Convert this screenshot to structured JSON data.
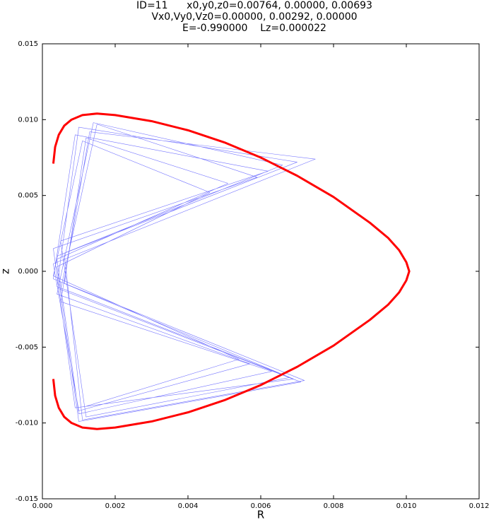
{
  "chart_data": {
    "type": "line",
    "title": [
      "ID=11      x0,y0,z0=0.00764, 0.00000, 0.00693",
      "Vx0,Vy0,Vz0=0.00000, 0.00292, 0.00000",
      "E=-0.990000    Lz=0.000022"
    ],
    "xlabel": "R",
    "ylabel": "z",
    "xlim": [
      0,
      0.012
    ],
    "ylim": [
      -0.015,
      0.015
    ],
    "xticks": [
      {
        "value": 0,
        "label": "0.000"
      },
      {
        "value": 0.002,
        "label": "0.002"
      },
      {
        "value": 0.004,
        "label": "0.004"
      },
      {
        "value": 0.006,
        "label": "0.006"
      },
      {
        "value": 0.008,
        "label": "0.008"
      },
      {
        "value": 0.01,
        "label": "0.010"
      },
      {
        "value": 0.012,
        "label": "0.012"
      }
    ],
    "yticks": [
      {
        "value": -0.015,
        "label": "-0.015"
      },
      {
        "value": -0.01,
        "label": "-0.010"
      },
      {
        "value": -0.005,
        "label": "-0.005"
      },
      {
        "value": 0,
        "label": "0.000"
      },
      {
        "value": 0.005,
        "label": "0.005"
      },
      {
        "value": 0.01,
        "label": "0.010"
      },
      {
        "value": 0.015,
        "label": "0.015"
      }
    ],
    "grid": false,
    "series": [
      {
        "color": "#0000ff",
        "width": 0.6,
        "opacity": 0.55,
        "x": [
          0.0004,
          0.007,
          0.001,
          0.0004,
          0.0068,
          0.0012,
          0.0005,
          0.0062,
          0.0009,
          0.0003,
          0.0072,
          0.0011,
          0.0006,
          0.0066,
          0.0014,
          0.0004,
          0.0057,
          0.001,
          0.0003,
          0.0075,
          0.0013,
          0.0005,
          0.0063,
          0.001,
          0.0004,
          0.0051,
          0.0012,
          0.0006,
          0.0069,
          0.0009,
          0.0003,
          0.0059,
          0.0015,
          0.0005,
          0.0071,
          0.001,
          0.0004,
          0.0046,
          0.0011,
          0.0003,
          0.0054,
          0.0012
        ],
        "y": [
          0.001,
          0.0072,
          0.0095,
          -0.001,
          -0.007,
          -0.0096,
          0.002,
          0.0066,
          0.009,
          -0.0005,
          -0.0072,
          -0.0098,
          0.0012,
          0.007,
          0.0098,
          -0.0015,
          -0.0061,
          -0.0092,
          0.0005,
          0.0074,
          0.0092,
          -0.002,
          -0.0066,
          -0.0094,
          0.0008,
          0.0058,
          0.0088,
          -0.0008,
          -0.0071,
          -0.009,
          0.0015,
          0.0062,
          0.0097,
          -0.0012,
          -0.0073,
          -0.0099,
          0.0003,
          0.0052,
          0.0086,
          -0.0003,
          -0.0058,
          -0.0089
        ]
      },
      {
        "color": "#ff0000",
        "width": 3,
        "opacity": 1,
        "x": [
          0.0003,
          0.00035,
          0.00045,
          0.0006,
          0.0008,
          0.0011,
          0.0015,
          0.002,
          0.003,
          0.004,
          0.005,
          0.006,
          0.007,
          0.008,
          0.009,
          0.0095,
          0.0098,
          0.01,
          0.01008,
          0.01,
          0.0098,
          0.0095,
          0.009,
          0.008,
          0.007,
          0.006,
          0.005,
          0.004,
          0.003,
          0.002,
          0.0015,
          0.0011,
          0.0008,
          0.0006,
          0.00045,
          0.00035,
          0.0003
        ],
        "y": [
          0.0071,
          0.0082,
          0.009,
          0.0096,
          0.01,
          0.0103,
          0.0104,
          0.0103,
          0.0099,
          0.0093,
          0.0085,
          0.0075,
          0.0063,
          0.0049,
          0.0032,
          0.0022,
          0.0014,
          0.0006,
          0,
          -0.0006,
          -0.0014,
          -0.0022,
          -0.0032,
          -0.0049,
          -0.0063,
          -0.0075,
          -0.0085,
          -0.0093,
          -0.0099,
          -0.0103,
          -0.0104,
          -0.0103,
          -0.01,
          -0.0096,
          -0.009,
          -0.0082,
          -0.0071
        ]
      }
    ]
  }
}
